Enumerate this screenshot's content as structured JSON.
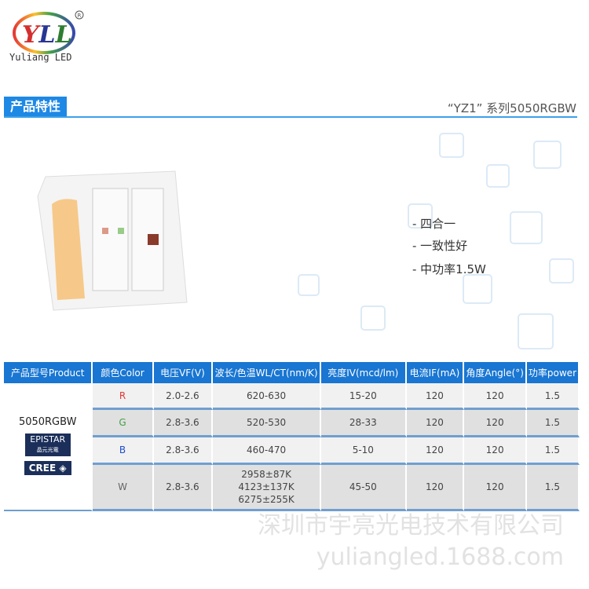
{
  "logo": {
    "mark": "YLL",
    "text": "Yuliang LED"
  },
  "section": {
    "tag": "产品特性",
    "series": "“YZ1” 系列5050RGBW"
  },
  "features": [
    "- 四合一",
    "- 一致性好",
    "- 中功率1.5W"
  ],
  "table": {
    "headers": [
      "产品型号Product",
      "颜色Color",
      "电压VF(V)",
      "波长/色温WL/CT(nm/K)",
      "亮度IV(mcd/lm)",
      "电流IF(mA)",
      "角度Angle(°)",
      "功率power"
    ],
    "product": "5050RGBW",
    "brands": {
      "epistar": "EPISTAR",
      "epistar_sub": "晶元光電",
      "cree": "CREE"
    },
    "rows": [
      {
        "color": "R",
        "color_hex": "#e53935",
        "vf": "2.0-2.6",
        "wl": "620-630",
        "iv": "15-20",
        "if": "120",
        "angle": "120",
        "power": "1.5"
      },
      {
        "color": "G",
        "color_hex": "#43a047",
        "vf": "2.8-3.6",
        "wl": "520-530",
        "iv": "28-33",
        "if": "120",
        "angle": "120",
        "power": "1.5"
      },
      {
        "color": "B",
        "color_hex": "#1e4fc9",
        "vf": "2.8-3.6",
        "wl": "460-470",
        "iv": "5-10",
        "if": "120",
        "angle": "120",
        "power": "1.5"
      },
      {
        "color": "W",
        "color_hex": "#666666",
        "vf": "2.8-3.6",
        "wl": [
          "2958±87K",
          "4123±137K",
          "6275±255K"
        ],
        "iv": "45-50",
        "if": "120",
        "angle": "120",
        "power": "1.5"
      }
    ]
  },
  "watermark": {
    "company": "深圳市宇亮光电技术有限公司",
    "site": "yuliangled.1688.com"
  }
}
